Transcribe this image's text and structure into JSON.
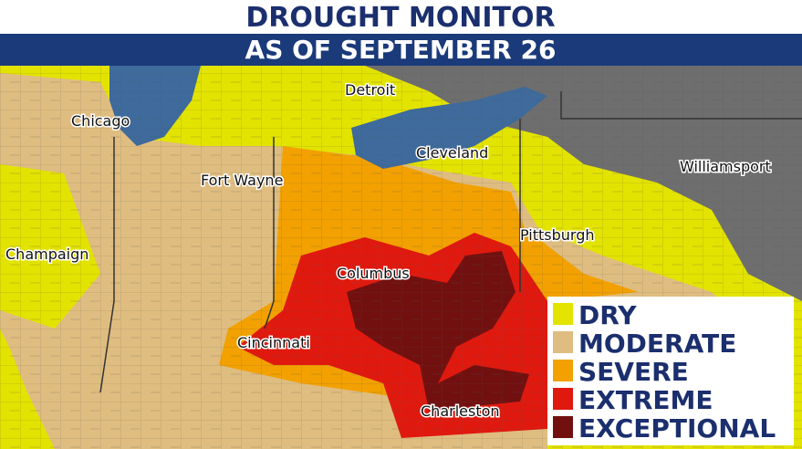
{
  "header": {
    "title": "DROUGHT MONITOR",
    "subtitle": "AS OF SEPTEMBER 26"
  },
  "cities": [
    "Detroit",
    "Chicago",
    "Cleveland",
    "Fort Wayne",
    "Williamsport",
    "Pittsburgh",
    "Champaign",
    "Columbus",
    "Cincinnati",
    "Charleston"
  ],
  "legend": [
    {
      "label": "DRY",
      "color": "#e3e300"
    },
    {
      "label": "MODERATE",
      "color": "#dfbd80"
    },
    {
      "label": "SEVERE",
      "color": "#f2a100"
    },
    {
      "label": "EXTREME",
      "color": "#e0190f"
    },
    {
      "label": "EXCEPTIONAL",
      "color": "#721010"
    }
  ]
}
